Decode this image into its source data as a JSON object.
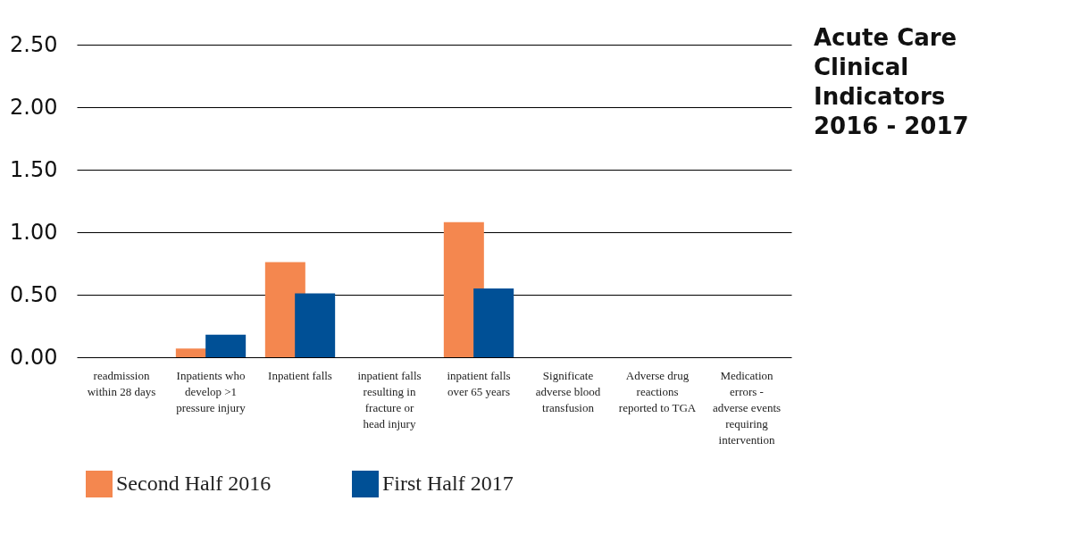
{
  "chart_data": {
    "type": "bar",
    "title": "Acute Care Clinical Indicators 2016 - 2017",
    "categories": [
      "readmission within 28 days",
      "Inpatients who develop >1 pressure injury",
      "Inpatient falls",
      "inpatient falls resulting in fracture or head injury",
      "inpatient falls over 65 years",
      "Significate adverse blood transfusion",
      "Adverse drug reactions reported to TGA",
      "Medication errors - adverse events requiring intervention"
    ],
    "series": [
      {
        "name": "Second Half 2016",
        "color": "#f4874f",
        "values": [
          0,
          0.07,
          0.76,
          0,
          1.08,
          0,
          0,
          0
        ]
      },
      {
        "name": "First Half 2017",
        "color": "#005096",
        "values": [
          0,
          0.18,
          0.51,
          0,
          0.55,
          0,
          0,
          0
        ]
      }
    ],
    "ylim": [
      0,
      2.5
    ],
    "yticks": [
      {
        "value": 0,
        "label": "0.00"
      },
      {
        "value": 0.5,
        "label": "0.50"
      },
      {
        "value": 1,
        "label": "1.00"
      },
      {
        "value": 1.5,
        "label": "1.50"
      },
      {
        "value": 2,
        "label": "2.00"
      },
      {
        "value": 2.5,
        "label": "2.50"
      }
    ],
    "grid": "y",
    "legend": "bottom"
  }
}
